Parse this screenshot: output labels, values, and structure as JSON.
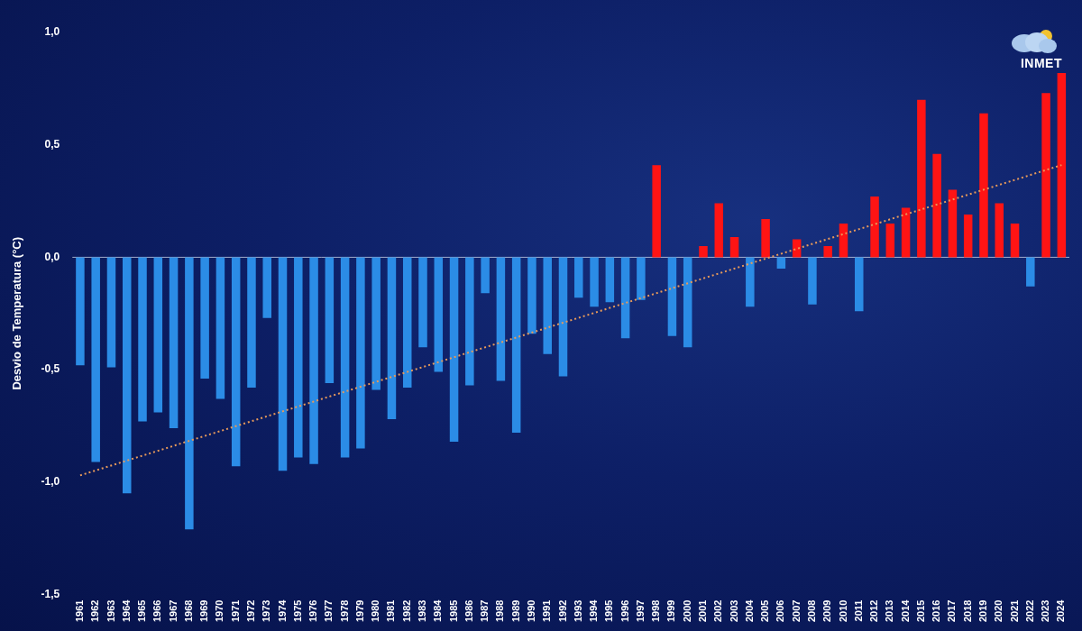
{
  "chart_data": {
    "type": "bar",
    "y_label": "Desvio de Temperatura (°C)",
    "annotations": [
      "INMET"
    ],
    "categories": [
      "1961",
      "1962",
      "1963",
      "1964",
      "1965",
      "1966",
      "1967",
      "1968",
      "1969",
      "1970",
      "1971",
      "1972",
      "1973",
      "1974",
      "1975",
      "1976",
      "1977",
      "1978",
      "1979",
      "1980",
      "1981",
      "1982",
      "1983",
      "1984",
      "1985",
      "1986",
      "1987",
      "1988",
      "1989",
      "1990",
      "1991",
      "1992",
      "1993",
      "1994",
      "1995",
      "1996",
      "1997",
      "1998",
      "1999",
      "2000",
      "2001",
      "2002",
      "2003",
      "2004",
      "2005",
      "2006",
      "2007",
      "2008",
      "2009",
      "2010",
      "2011",
      "2012",
      "2013",
      "2014",
      "2015",
      "2016",
      "2017",
      "2018",
      "2019",
      "2020",
      "2021",
      "2022",
      "2023",
      "2024"
    ],
    "series": [
      {
        "type": "bar",
        "colors": [
          "#2b8ce6",
          "#2b8ce6",
          "#2b8ce6",
          "#2b8ce6",
          "#2b8ce6",
          "#2b8ce6",
          "#2b8ce6",
          "#2b8ce6",
          "#2b8ce6",
          "#2b8ce6",
          "#2b8ce6",
          "#2b8ce6",
          "#2b8ce6",
          "#2b8ce6",
          "#2b8ce6",
          "#2b8ce6",
          "#2b8ce6",
          "#2b8ce6",
          "#2b8ce6",
          "#2b8ce6",
          "#2b8ce6",
          "#2b8ce6",
          "#2b8ce6",
          "#2b8ce6",
          "#2b8ce6",
          "#2b8ce6",
          "#2b8ce6",
          "#2b8ce6",
          "#2b8ce6",
          "#2b8ce6",
          "#2b8ce6",
          "#2b8ce6",
          "#2b8ce6",
          "#2b8ce6",
          "#2b8ce6",
          "#2b8ce6",
          "#2b8ce6",
          "#ff1414",
          "#2b8ce6",
          "#2b8ce6",
          "#ff1414",
          "#ff1414",
          "#ff1414",
          "#2b8ce6",
          "#ff1414",
          "#2b8ce6",
          "#ff1414",
          "#2b8ce6",
          "#ff1414",
          "#ff1414",
          "#2b8ce6",
          "#ff1414",
          "#ff1414",
          "#ff1414",
          "#ff1414",
          "#ff1414",
          "#ff1414",
          "#ff1414",
          "#ff1414",
          "#ff1414",
          "#ff1414",
          "#2b8ce6",
          "#ff1414",
          "#ff1414"
        ],
        "values": [
          -0.48,
          -0.91,
          -0.49,
          -1.05,
          -0.73,
          -0.69,
          -0.76,
          -1.21,
          -0.54,
          -0.63,
          -0.93,
          -0.58,
          -0.27,
          -0.95,
          -0.89,
          -0.92,
          -0.56,
          -0.89,
          -0.85,
          -0.59,
          -0.72,
          -0.58,
          -0.4,
          -0.51,
          -0.82,
          -0.57,
          -0.16,
          -0.55,
          -0.78,
          -0.34,
          -0.43,
          -0.53,
          -0.18,
          -0.22,
          -0.2,
          -0.36,
          -0.19,
          0.41,
          -0.35,
          -0.4,
          0.05,
          0.24,
          0.09,
          -0.22,
          0.17,
          -0.05,
          0.08,
          -0.21,
          0.05,
          0.15,
          -0.24,
          0.27,
          0.15,
          0.22,
          0.7,
          0.46,
          0.3,
          0.19,
          0.64,
          0.24,
          0.15,
          -0.13,
          0.73,
          0.82
        ]
      },
      {
        "type": "line",
        "color": "#e89a5a",
        "line_style": "dotted",
        "values": [
          -0.97,
          null,
          null,
          null,
          null,
          null,
          null,
          null,
          null,
          null,
          null,
          null,
          null,
          null,
          null,
          null,
          null,
          null,
          null,
          null,
          null,
          null,
          null,
          null,
          null,
          null,
          null,
          null,
          null,
          null,
          null,
          null,
          null,
          null,
          null,
          null,
          null,
          null,
          null,
          null,
          null,
          null,
          null,
          null,
          null,
          null,
          null,
          null,
          null,
          null,
          null,
          null,
          null,
          null,
          null,
          null,
          null,
          null,
          null,
          null,
          null,
          null,
          null,
          0.41
        ]
      }
    ],
    "ylim": [
      -1.5,
      1.0
    ],
    "yticks": [
      {
        "value": -1.5,
        "label": "-1,5"
      },
      {
        "value": -1.0,
        "label": "-1,0"
      },
      {
        "value": -0.5,
        "label": "-0,5"
      },
      {
        "value": 0,
        "label": "0,0"
      },
      {
        "value": 0.5,
        "label": "0,5"
      },
      {
        "value": 1.0,
        "label": "1,0"
      }
    ],
    "grid": false,
    "tick_labels": true
  }
}
